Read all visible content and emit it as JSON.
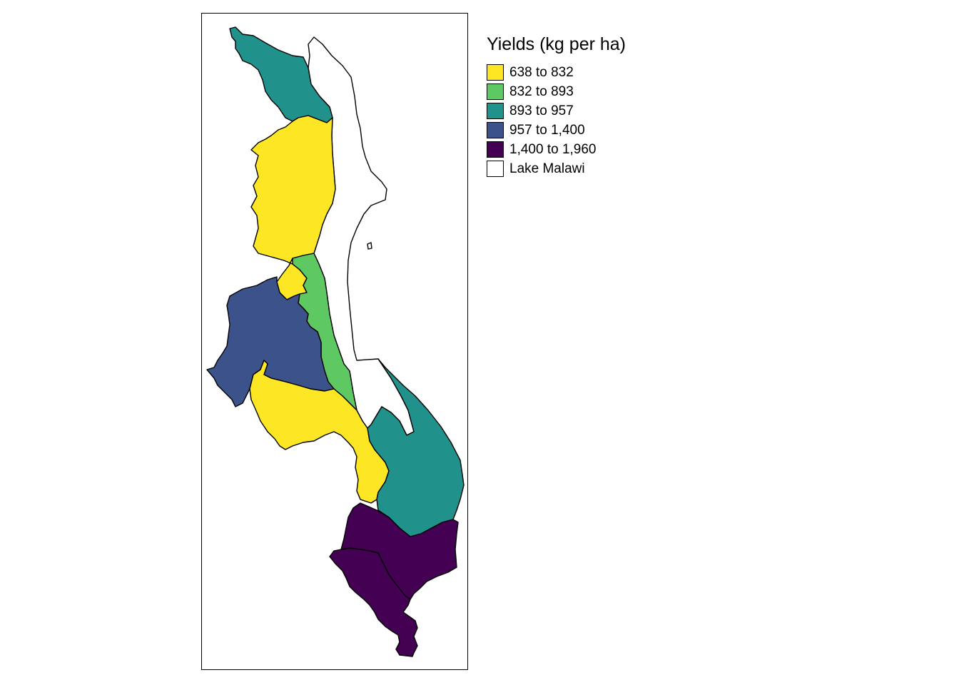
{
  "legend": {
    "title": "Yields (kg per ha)",
    "items": [
      {
        "label": "638 to 832",
        "color": "#fde725"
      },
      {
        "label": "832 to 893",
        "color": "#5ec962"
      },
      {
        "label": "893 to 957",
        "color": "#21918c"
      },
      {
        "label": "957 to 1,400",
        "color": "#3b528b"
      },
      {
        "label": "1,400 to 1,960",
        "color": "#440154"
      },
      {
        "label": "Lake Malawi",
        "color": "#ffffff"
      }
    ]
  },
  "regions": [
    {
      "name": "northern-teal",
      "class": 2
    },
    {
      "name": "northern-yellow",
      "class": 0
    },
    {
      "name": "central-green",
      "class": 1
    },
    {
      "name": "central-blue",
      "class": 3
    },
    {
      "name": "central-yellow",
      "class": 0
    },
    {
      "name": "southeast-teal",
      "class": 2
    },
    {
      "name": "south-east-purple",
      "class": 4
    },
    {
      "name": "south-west-purple",
      "class": 4
    },
    {
      "name": "lake",
      "class": 5
    }
  ]
}
